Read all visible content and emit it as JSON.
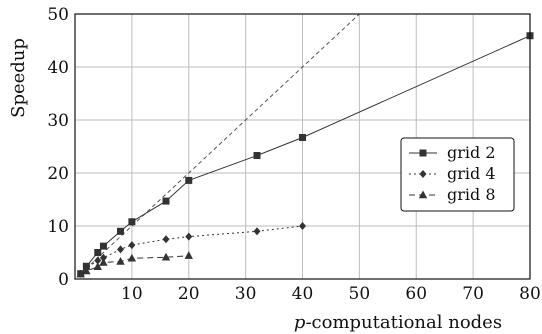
{
  "chart_data": {
    "type": "line",
    "xlabel": "p-computational nodes",
    "xlabel_var": "p",
    "xlabel_rest": "-computational nodes",
    "ylabel": "Speedup",
    "xlim": [
      0,
      80
    ],
    "ylim": [
      0,
      50
    ],
    "xticks": [
      10,
      20,
      30,
      40,
      50,
      60,
      70,
      80
    ],
    "yticks": [
      0,
      10,
      20,
      30,
      40,
      50
    ],
    "grid": true,
    "legend_position": "right",
    "reference_line": {
      "x": [
        1,
        50
      ],
      "y": [
        1,
        50
      ],
      "style": "dashed",
      "color": "#555555"
    },
    "series": [
      {
        "name": "grid 2",
        "marker": "square",
        "line_style": "solid",
        "color": "#333333",
        "x": [
          1,
          2,
          4,
          5,
          8,
          10,
          16,
          20,
          32,
          40,
          80
        ],
        "y": [
          1.0,
          2.4,
          5.0,
          6.2,
          9.0,
          10.8,
          14.7,
          18.6,
          23.3,
          26.7,
          45.9
        ]
      },
      {
        "name": "grid 4",
        "marker": "diamond",
        "line_style": "dotted",
        "color": "#333333",
        "x": [
          1,
          2,
          4,
          5,
          8,
          10,
          16,
          20,
          32,
          40
        ],
        "y": [
          1.0,
          2.0,
          3.5,
          4.0,
          5.6,
          6.4,
          7.5,
          8.0,
          9.0,
          10.0
        ]
      },
      {
        "name": "grid 8",
        "marker": "triangle",
        "line_style": "dashed",
        "color": "#333333",
        "x": [
          1,
          2,
          4,
          5,
          8,
          10,
          16,
          20
        ],
        "y": [
          0.9,
          1.5,
          2.3,
          3.1,
          3.3,
          3.9,
          4.1,
          4.4
        ]
      }
    ]
  }
}
